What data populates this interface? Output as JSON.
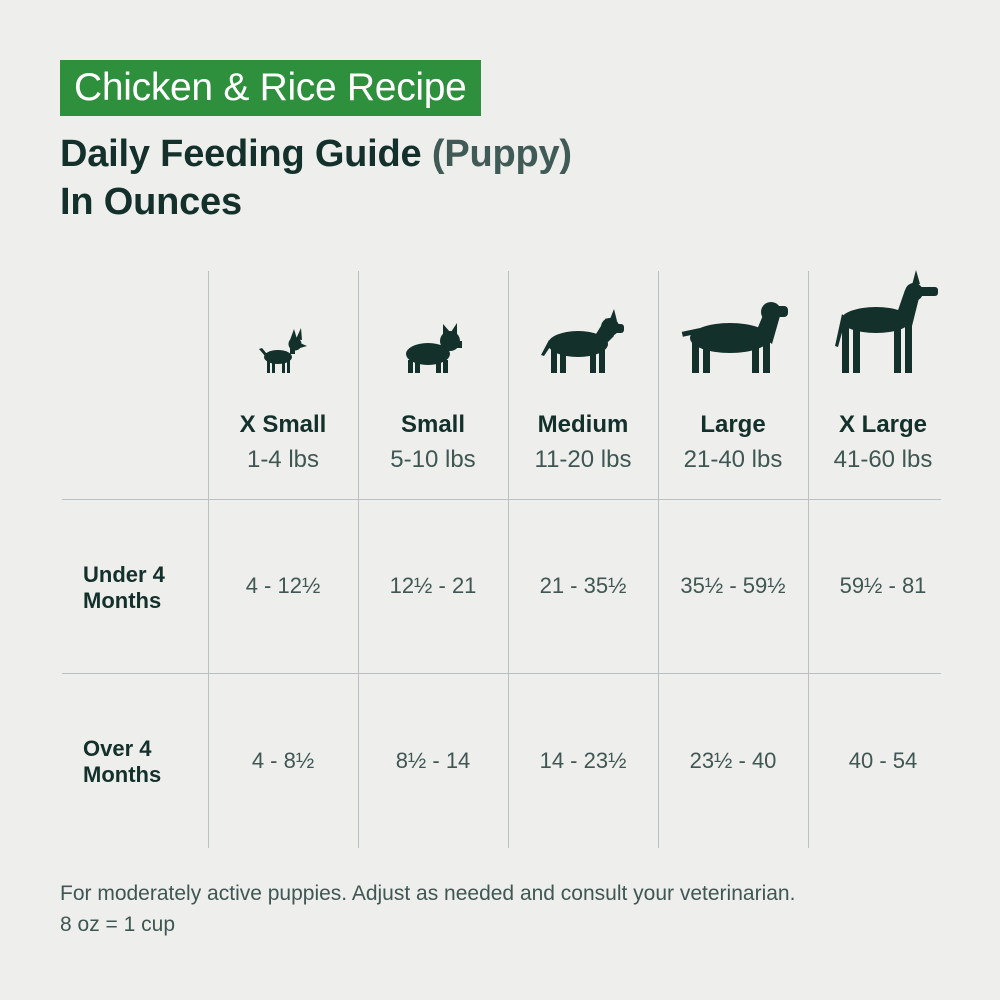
{
  "header": {
    "recipe_badge": "Chicken & Rice Recipe",
    "title_main": "Daily Feeding Guide ",
    "title_muted": "(Puppy)",
    "title_line2": "In Ounces"
  },
  "table": {
    "columns": [
      {
        "name": "X Small",
        "range": "1-4 lbs",
        "icon": "chihuahua-icon"
      },
      {
        "name": "Small",
        "range": "5-10 lbs",
        "icon": "french-bulldog-icon"
      },
      {
        "name": "Medium",
        "range": "11-20 lbs",
        "icon": "pitbull-icon"
      },
      {
        "name": "Large",
        "range": "21-40 lbs",
        "icon": "labrador-icon"
      },
      {
        "name": "X Large",
        "range": "41-60 lbs",
        "icon": "great-dane-icon"
      }
    ],
    "rows": [
      {
        "label": "Under 4 Months",
        "values": [
          "4 - 12½",
          "12½ - 21",
          "21 - 35½",
          "35½ - 59½",
          "59½ - 81"
        ]
      },
      {
        "label": "Over 4 Months",
        "values": [
          "4 - 8½",
          "8½ - 14",
          "14 - 23½",
          "23½ - 40",
          "40 - 54"
        ]
      }
    ]
  },
  "footnote": {
    "line1": "For moderately active puppies. Adjust as needed and consult your veterinarian.",
    "line2": "8 oz = 1 cup"
  },
  "colors": {
    "badge_green": "#2e8f3c",
    "text_dark": "#13302a",
    "text_muted": "#3f5752",
    "grid_line": "#b9c0c2",
    "background": "#eeeeed"
  }
}
